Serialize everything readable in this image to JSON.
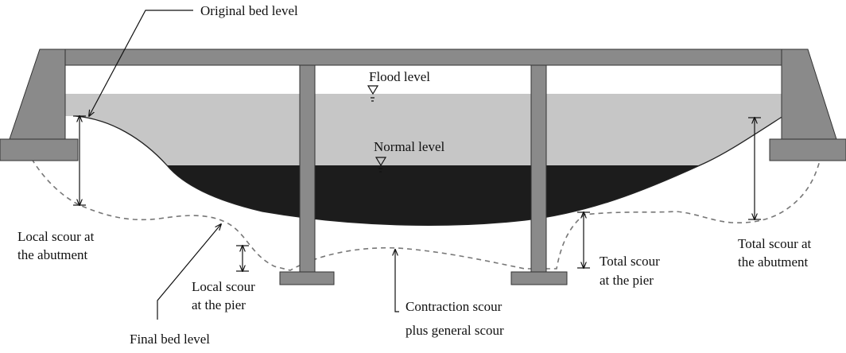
{
  "labels": {
    "original_bed_level": "Original bed level",
    "flood_level": "Flood level",
    "normal_level": "Normal level",
    "local_scour_abutment_1": "Local scour at",
    "local_scour_abutment_2": "the abutment",
    "local_scour_pier_1": "Local scour",
    "local_scour_pier_2": "at the pier",
    "final_bed_level": "Final bed level",
    "contraction_scour_1": "Contraction scour",
    "contraction_scour_2": "plus general scour",
    "total_scour_pier_1": "Total scour",
    "total_scour_pier_2": "at the pier",
    "total_scour_abutment_1": "Total scour at",
    "total_scour_abutment_2": "the abutment"
  },
  "colors": {
    "structure": "#8a8a8a",
    "structure_edge": "#333333",
    "flood_water": "#c6c6c6",
    "normal_water": "#1c1c1c",
    "final_bed_dash": "#777777",
    "line": "#111111"
  }
}
